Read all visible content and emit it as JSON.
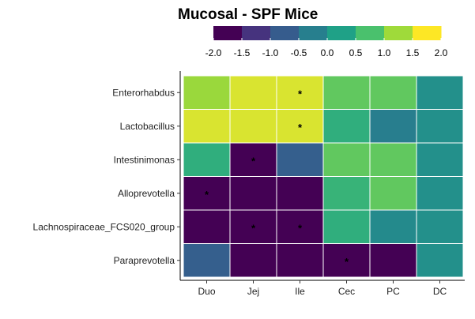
{
  "chart_data": {
    "type": "heatmap",
    "title": "Mucosal - SPF Mice",
    "xlabel": "",
    "ylabel": "",
    "x": [
      "Duo",
      "Jej",
      "Ile",
      "Cec",
      "PC",
      "DC"
    ],
    "y": [
      "Enterorhabdus",
      "Lactobacillus",
      "Intestinimonas",
      "Alloprevotella",
      "Lachnospiraceae_FCS020_group",
      "Paraprevotella"
    ],
    "values": [
      [
        1.4,
        2.0,
        2.0,
        1.0,
        1.0,
        0.0
      ],
      [
        2.0,
        2.0,
        2.0,
        0.5,
        -0.3,
        0.0
      ],
      [
        0.5,
        -2.0,
        -0.8,
        1.0,
        1.0,
        0.0
      ],
      [
        -2.0,
        -2.0,
        -2.0,
        0.6,
        1.0,
        0.0
      ],
      [
        -2.0,
        -2.0,
        -2.0,
        0.5,
        -0.1,
        0.0
      ],
      [
        -0.8,
        -2.0,
        -2.0,
        -2.0,
        -2.0,
        0.0
      ]
    ],
    "significant": [
      [
        false,
        false,
        true,
        false,
        false,
        false
      ],
      [
        false,
        false,
        true,
        false,
        false,
        false
      ],
      [
        false,
        true,
        false,
        false,
        false,
        false
      ],
      [
        true,
        false,
        false,
        false,
        false,
        false
      ],
      [
        false,
        true,
        true,
        false,
        false,
        false
      ],
      [
        false,
        false,
        false,
        true,
        false,
        false
      ]
    ],
    "significance_marker": "*",
    "colorscale": {
      "range": [
        -2.0,
        2.0
      ],
      "ticks": [
        "-2.0",
        "-1.5",
        "-1.0",
        "-0.5",
        "0.0",
        "0.5",
        "1.0",
        "1.5",
        "2.0"
      ],
      "colors": [
        "#440154",
        "#46337E",
        "#365C8D",
        "#277F8E",
        "#1FA187",
        "#4AC16D",
        "#9FDA3A",
        "#FDE725"
      ],
      "legend_placement": "top"
    }
  }
}
